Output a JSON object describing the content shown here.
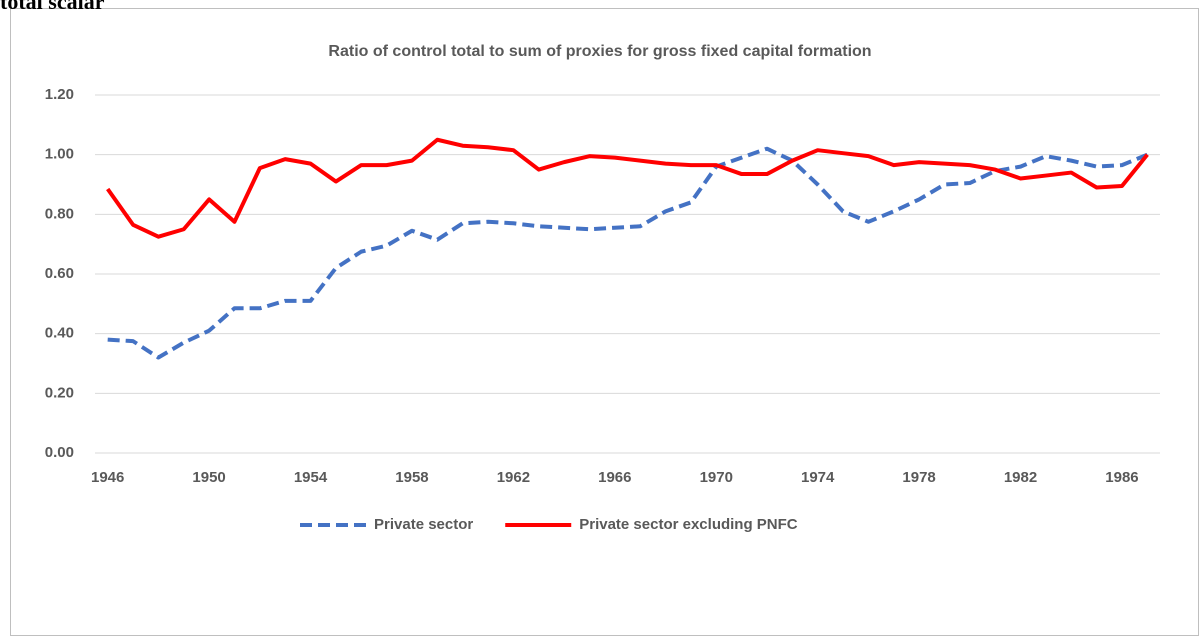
{
  "caption": "total scalar",
  "chart_data": {
    "type": "line",
    "title": "Ratio of control total to sum of proxies for gross fixed capital formation",
    "x": [
      1946,
      1947,
      1948,
      1949,
      1950,
      1951,
      1952,
      1953,
      1954,
      1955,
      1956,
      1957,
      1958,
      1959,
      1960,
      1961,
      1962,
      1963,
      1964,
      1965,
      1966,
      1967,
      1968,
      1969,
      1970,
      1971,
      1972,
      1973,
      1974,
      1975,
      1976,
      1977,
      1978,
      1979,
      1980,
      1981,
      1982,
      1983,
      1984,
      1985,
      1986,
      1987
    ],
    "xlim": [
      1945.5,
      1987.5
    ],
    "xticks": [
      1946,
      1950,
      1954,
      1958,
      1962,
      1966,
      1970,
      1974,
      1978,
      1982,
      1986
    ],
    "ylim": [
      0,
      1.2
    ],
    "yticks": [
      {
        "value": 0,
        "label": "0.00"
      },
      {
        "value": 0.2,
        "label": "0.20"
      },
      {
        "value": 0.4,
        "label": "0.40"
      },
      {
        "value": 0.6,
        "label": "0.60"
      },
      {
        "value": 0.8,
        "label": "0.80"
      },
      {
        "value": 1,
        "label": "1.00"
      },
      {
        "value": 1.2,
        "label": "1.20"
      }
    ],
    "grid": true,
    "legend": "bottom",
    "series": [
      {
        "name": "Private sector",
        "color": "#4472c4",
        "dashed": true,
        "values": [
          0.38,
          0.375,
          0.32,
          0.37,
          0.41,
          0.485,
          0.485,
          0.51,
          0.51,
          0.62,
          0.675,
          0.695,
          0.745,
          0.715,
          0.77,
          0.775,
          0.77,
          0.76,
          0.755,
          0.75,
          0.755,
          0.76,
          0.81,
          0.84,
          0.96,
          0.99,
          1.02,
          0.98,
          0.9,
          0.81,
          0.775,
          0.81,
          0.85,
          0.9,
          0.905,
          0.945,
          0.96,
          0.995,
          0.98,
          0.96,
          0.965,
          1.0
        ]
      },
      {
        "name": "Private sector excluding PNFC",
        "color": "#ff0000",
        "dashed": false,
        "values": [
          0.885,
          0.765,
          0.725,
          0.75,
          0.85,
          0.775,
          0.955,
          0.985,
          0.97,
          0.91,
          0.965,
          0.965,
          0.98,
          1.05,
          1.03,
          1.025,
          1.015,
          0.95,
          0.975,
          0.995,
          0.99,
          0.98,
          0.97,
          0.965,
          0.965,
          0.935,
          0.935,
          0.98,
          1.015,
          1.005,
          0.995,
          0.965,
          0.975,
          0.97,
          0.965,
          0.95,
          0.92,
          0.93,
          0.94,
          0.89,
          0.895,
          1.0
        ]
      }
    ]
  }
}
